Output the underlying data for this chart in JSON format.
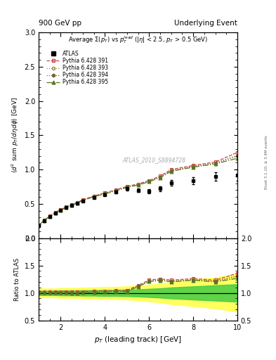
{
  "title_left": "900 GeV pp",
  "title_right": "Underlying Event",
  "watermark": "ATLAS_2010_S8894728",
  "right_label": "Rivet 3.1.10, ≥ 3.4M events",
  "xlabel": "p_{T} (leading track) [GeV]",
  "ylabel": "⟨d² sum p_{T}/dηdφ⟩ [GeV]",
  "ylabel_ratio": "Ratio to ATLAS",
  "xlim": [
    1.0,
    10.0
  ],
  "ylim_main": [
    0.0,
    3.0
  ],
  "ylim_ratio": [
    0.5,
    2.0
  ],
  "atlas_x": [
    1.0,
    1.25,
    1.5,
    1.75,
    2.0,
    2.25,
    2.5,
    2.75,
    3.0,
    3.5,
    4.0,
    4.5,
    5.0,
    5.5,
    6.0,
    6.5,
    7.0,
    8.0,
    9.0,
    10.0
  ],
  "atlas_y": [
    0.185,
    0.255,
    0.315,
    0.365,
    0.405,
    0.445,
    0.48,
    0.51,
    0.545,
    0.595,
    0.635,
    0.675,
    0.72,
    0.695,
    0.68,
    0.72,
    0.81,
    0.84,
    0.9,
    0.92
  ],
  "atlas_yerr": [
    0.008,
    0.008,
    0.008,
    0.008,
    0.008,
    0.01,
    0.01,
    0.01,
    0.012,
    0.015,
    0.018,
    0.02,
    0.025,
    0.025,
    0.03,
    0.035,
    0.04,
    0.05,
    0.06,
    0.08
  ],
  "py391_x": [
    1.0,
    1.25,
    1.5,
    1.75,
    2.0,
    2.25,
    2.5,
    2.75,
    3.0,
    3.5,
    4.0,
    4.5,
    5.0,
    5.5,
    6.0,
    6.5,
    7.0,
    8.0,
    9.0,
    10.0
  ],
  "py391_y": [
    0.19,
    0.26,
    0.32,
    0.375,
    0.415,
    0.455,
    0.49,
    0.52,
    0.56,
    0.615,
    0.66,
    0.705,
    0.755,
    0.79,
    0.84,
    0.905,
    1.0,
    1.06,
    1.11,
    1.25
  ],
  "py393_x": [
    1.0,
    1.25,
    1.5,
    1.75,
    2.0,
    2.25,
    2.5,
    2.75,
    3.0,
    3.5,
    4.0,
    4.5,
    5.0,
    5.5,
    6.0,
    6.5,
    7.0,
    8.0,
    9.0,
    10.0
  ],
  "py393_y": [
    0.189,
    0.259,
    0.318,
    0.37,
    0.412,
    0.451,
    0.486,
    0.516,
    0.555,
    0.609,
    0.653,
    0.698,
    0.748,
    0.782,
    0.832,
    0.893,
    0.988,
    1.048,
    1.098,
    1.21
  ],
  "py394_x": [
    1.0,
    1.25,
    1.5,
    1.75,
    2.0,
    2.25,
    2.5,
    2.75,
    3.0,
    3.5,
    4.0,
    4.5,
    5.0,
    5.5,
    6.0,
    6.5,
    7.0,
    8.0,
    9.0,
    10.0
  ],
  "py394_y": [
    0.188,
    0.258,
    0.317,
    0.369,
    0.41,
    0.449,
    0.484,
    0.514,
    0.553,
    0.607,
    0.65,
    0.695,
    0.745,
    0.779,
    0.828,
    0.888,
    0.982,
    1.042,
    1.09,
    1.195
  ],
  "py395_x": [
    1.0,
    1.25,
    1.5,
    1.75,
    2.0,
    2.25,
    2.5,
    2.75,
    3.0,
    3.5,
    4.0,
    4.5,
    5.0,
    5.5,
    6.0,
    6.5,
    7.0,
    8.0,
    9.0,
    10.0
  ],
  "py395_y": [
    0.187,
    0.257,
    0.316,
    0.367,
    0.408,
    0.447,
    0.481,
    0.511,
    0.55,
    0.603,
    0.646,
    0.69,
    0.74,
    0.774,
    0.822,
    0.882,
    0.975,
    1.035,
    1.082,
    1.165
  ],
  "color_391": "#cc4444",
  "color_393": "#aa8844",
  "color_394": "#776633",
  "color_395": "#557722",
  "color_atlas": "#000000",
  "band_yellow": "#ffff44",
  "band_green": "#44cc44",
  "ratio_band_yellow_lo": [
    0.92,
    0.92,
    0.92,
    0.92,
    0.91,
    0.91,
    0.91,
    0.91,
    0.9,
    0.9,
    0.89,
    0.89,
    0.88,
    0.87,
    0.85,
    0.83,
    0.8,
    0.76,
    0.72,
    0.66
  ],
  "ratio_band_yellow_hi": [
    1.08,
    1.08,
    1.08,
    1.08,
    1.09,
    1.09,
    1.09,
    1.09,
    1.1,
    1.1,
    1.11,
    1.11,
    1.12,
    1.13,
    1.15,
    1.17,
    1.2,
    1.25,
    1.28,
    1.35
  ],
  "ratio_band_green_lo": [
    0.96,
    0.96,
    0.96,
    0.96,
    0.955,
    0.955,
    0.955,
    0.955,
    0.95,
    0.95,
    0.945,
    0.945,
    0.94,
    0.935,
    0.925,
    0.915,
    0.9,
    0.88,
    0.86,
    0.84
  ],
  "ratio_band_green_hi": [
    1.04,
    1.04,
    1.04,
    1.04,
    1.045,
    1.045,
    1.045,
    1.045,
    1.05,
    1.05,
    1.055,
    1.055,
    1.06,
    1.065,
    1.075,
    1.085,
    1.1,
    1.12,
    1.14,
    1.16
  ]
}
